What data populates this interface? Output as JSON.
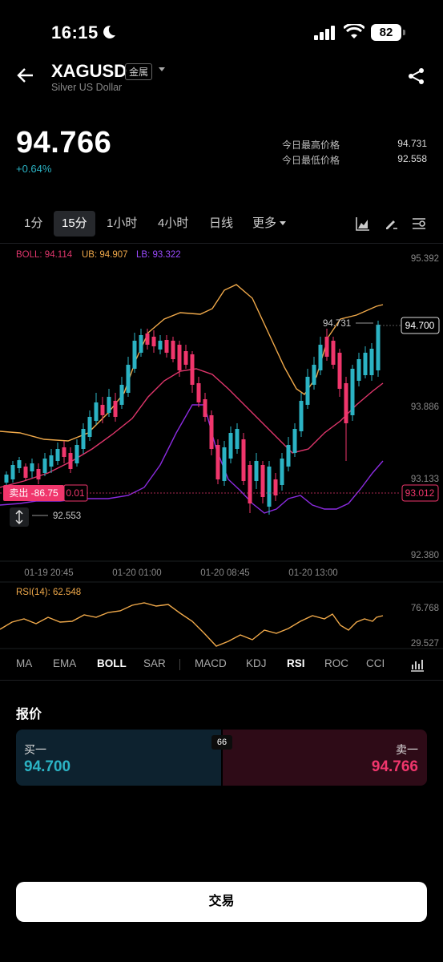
{
  "status_bar": {
    "time": "16:15",
    "battery": "82"
  },
  "header": {
    "symbol": "XAGUSD",
    "tag": "金属",
    "name": "Silver US Dollar"
  },
  "quote": {
    "price": "94.766",
    "change": "+0.64%",
    "high_label": "今日最高价格",
    "high_value": "94.731",
    "low_label": "今日最低价格",
    "low_value": "92.558"
  },
  "timeframes": [
    "1分",
    "15分",
    "1小时",
    "4小时",
    "日线",
    "更多"
  ],
  "active_timeframe": "15分",
  "boll": {
    "mid": "BOLL: 94.114",
    "ub": "UB: 94.907",
    "lb": "LB: 93.322"
  },
  "chart": {
    "y_labels": [
      "95.392",
      "93.886",
      "93.133",
      "92.380"
    ],
    "x_labels": [
      "01-19 20:45",
      "01-20 01:00",
      "01-20 08:45",
      "01-20 13:00"
    ],
    "current_price_label": "94.700",
    "high_marker": "94.731",
    "low_marker": "92.553",
    "sell_label": "卖出 -86.75",
    "sell_qty": "0.01",
    "position_price": "93.012"
  },
  "rsi": {
    "label": "RSI(14): 62.548",
    "top": "76.768",
    "bottom": "29.527"
  },
  "indicators": [
    "MA",
    "EMA",
    "BOLL",
    "SAR",
    "MACD",
    "KDJ",
    "RSI",
    "ROC",
    "CCI"
  ],
  "selected_indicators": [
    "BOLL",
    "RSI"
  ],
  "quote_panel": {
    "title": "报价",
    "buy_label": "买一",
    "buy_value": "94.700",
    "sell_label": "卖一",
    "sell_value": "94.766",
    "spread": "66"
  },
  "trade_button": "交易",
  "colors": {
    "up": "#2bb3c4",
    "down": "#f0366c",
    "ub": "#f0a94a",
    "mid": "#e0366c",
    "lb": "#8b2be0",
    "rsi": "#f0a94a"
  }
}
